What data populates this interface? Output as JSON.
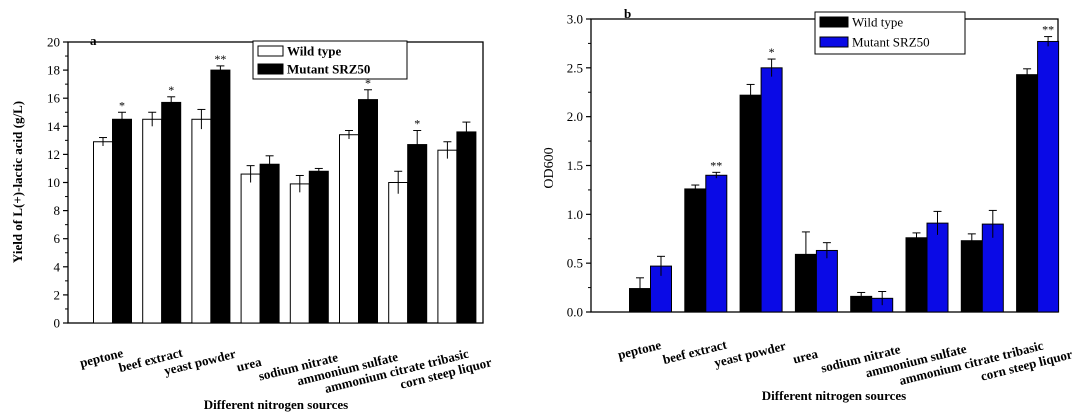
{
  "chart_data": [
    {
      "type": "bar",
      "panel": "a",
      "categories": [
        "peptone",
        "beef extract",
        "yeast powder",
        "urea",
        "sodium nitrate",
        "ammonium sulfate",
        "ammonium citrate tribasic",
        "corn steep liquor"
      ],
      "series": [
        {
          "name": "Wild type",
          "values": [
            12.9,
            14.5,
            14.5,
            10.6,
            9.9,
            13.4,
            10.0,
            12.3
          ],
          "errors": [
            0.3,
            0.5,
            0.7,
            0.6,
            0.6,
            0.3,
            0.8,
            0.6
          ],
          "fill": "#ffffff"
        },
        {
          "name": "Mutant SRZ50",
          "values": [
            14.5,
            15.7,
            18.0,
            11.3,
            10.8,
            15.9,
            12.7,
            13.6
          ],
          "errors": [
            0.5,
            0.4,
            0.3,
            0.6,
            0.2,
            0.7,
            1.0,
            0.7
          ],
          "fill": "#000000"
        }
      ],
      "significance": [
        "*",
        "*",
        "**",
        "",
        "",
        "*",
        "*",
        ""
      ],
      "xlabel": "Different nitrogen sources",
      "ylabel": "Yield of L(+)-lactic acid (g/L)",
      "ylim": [
        0,
        20
      ],
      "yticks": [
        "0",
        "2",
        "4",
        "6",
        "8",
        "10",
        "12",
        "14",
        "16",
        "18",
        "20"
      ],
      "legend": "top-right",
      "grid": false
    },
    {
      "type": "bar",
      "panel": "b",
      "categories": [
        "peptone",
        "beef extract",
        "yeast powder",
        "urea",
        "sodium nitrate",
        "ammonium sulfate",
        "ammonium citrate tribasic",
        "corn steep liquor"
      ],
      "series": [
        {
          "name": "Wild type",
          "values": [
            0.24,
            1.26,
            2.22,
            0.59,
            0.16,
            0.76,
            0.73,
            2.43
          ],
          "errors": [
            0.11,
            0.04,
            0.11,
            0.23,
            0.04,
            0.05,
            0.07,
            0.06
          ],
          "fill": "#000000"
        },
        {
          "name": "Mutant SRZ50",
          "values": [
            0.47,
            1.4,
            2.5,
            0.63,
            0.14,
            0.91,
            0.9,
            2.77
          ],
          "errors": [
            0.1,
            0.03,
            0.09,
            0.08,
            0.07,
            0.12,
            0.14,
            0.05
          ],
          "fill": "#0a0ae6"
        }
      ],
      "significance": [
        "",
        "**",
        "*",
        "",
        "",
        "",
        "",
        "**"
      ],
      "xlabel": "Different nitrogen sources",
      "ylabel": "OD600",
      "ylim": [
        0,
        3.0
      ],
      "yticks": [
        "0.0",
        "0.5",
        "1.0",
        "1.5",
        "2.0",
        "2.5",
        "3.0"
      ],
      "legend": "top-center",
      "grid": false
    }
  ]
}
